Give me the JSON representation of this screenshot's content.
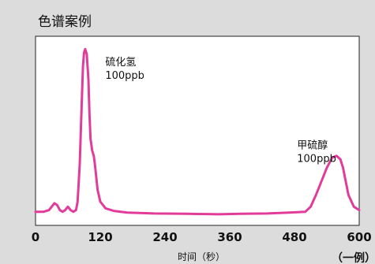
{
  "chart_data": {
    "type": "line",
    "title": "色谱案例",
    "xlabel": "时间（秒）",
    "ylabel": "",
    "note": "（一例）",
    "xlim": [
      0,
      600
    ],
    "ylim": [
      0,
      100
    ],
    "x_ticks": [
      "0",
      "120",
      "240",
      "360",
      "480",
      "600"
    ],
    "grid": false,
    "series": [
      {
        "color": "#e23c9a",
        "x": [
          0,
          15,
          25,
          30,
          35,
          40,
          45,
          50,
          55,
          60,
          65,
          70,
          75,
          78,
          82,
          85,
          88,
          90,
          92,
          95,
          98,
          100,
          102,
          105,
          108,
          110,
          115,
          120,
          130,
          145,
          170,
          220,
          280,
          340,
          380,
          430,
          470,
          500,
          510,
          520,
          530,
          540,
          550,
          558,
          565,
          570,
          575,
          580,
          590,
          600
        ],
        "y": [
          2,
          2,
          3,
          5,
          7,
          6,
          3,
          2,
          3,
          5,
          3,
          2,
          3,
          8,
          30,
          60,
          88,
          96,
          98,
          95,
          80,
          60,
          45,
          38,
          35,
          30,
          15,
          8,
          4,
          2.5,
          1.5,
          1,
          0.8,
          0.5,
          0.8,
          1,
          1.5,
          2,
          5,
          12,
          20,
          28,
          34,
          35,
          33,
          28,
          20,
          12,
          5,
          3
        ]
      }
    ],
    "annotations": [
      {
        "lines": [
          "硫化氢",
          "100ppb"
        ],
        "x": 100,
        "y": 92
      },
      {
        "lines": [
          "甲硫醇",
          "100ppb"
        ],
        "x": 555,
        "y": 38
      }
    ]
  }
}
